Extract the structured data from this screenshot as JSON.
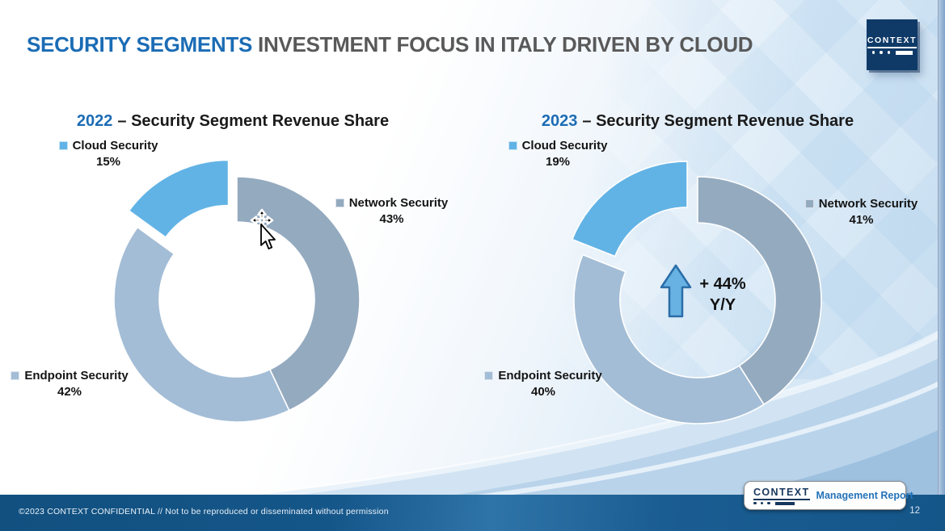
{
  "slide": {
    "title": {
      "highlight": "SECURITY SEGMENTS",
      "rest": "INVESTMENT FOCUS IN ITALY DRIVEN BY CLOUD"
    },
    "footer_text": "©2023 CONTEXT CONFIDENTIAL // Not to be reproduced or disseminated without permission",
    "page_number": "12"
  },
  "logo": {
    "text": "CONTEXT"
  },
  "badge": {
    "logo_text": "CONTEXT",
    "label": "Management Report"
  },
  "icons": {
    "cursor": "move-arrow-cursor",
    "annotation_arrow": "up-arrow"
  },
  "colors": {
    "title_blue": "#1b6cb5",
    "title_gray": "#595959",
    "cloud": "#62b3e5",
    "network": "#94aabf",
    "endpoint": "#a4bdd6",
    "footer_bar": "#155689",
    "arrow_fill": "#67b2e2",
    "arrow_stroke": "#2a6da8"
  },
  "chart_data": [
    {
      "type": "pie",
      "variant": "donut",
      "title_year": "2022",
      "title_rest": "– Security Segment Revenue Share",
      "start_angle_deg": 0,
      "clockwise": true,
      "segments": [
        {
          "label": "Network Security",
          "value": 43,
          "pct_label": "43%",
          "color": "#94aabf",
          "exploded": false
        },
        {
          "label": "Endpoint Security",
          "value": 42,
          "pct_label": "42%",
          "color": "#a4bdd6",
          "exploded": false
        },
        {
          "label": "Cloud Security",
          "value": 15,
          "pct_label": "15%",
          "color": "#62b3e5",
          "exploded": true
        }
      ]
    },
    {
      "type": "pie",
      "variant": "donut",
      "title_year": "2023",
      "title_rest": "– Security Segment Revenue Share",
      "start_angle_deg": 0,
      "clockwise": true,
      "annotation": {
        "line1": "+ 44%",
        "line2": "Y/Y",
        "icon": "up-arrow-icon"
      },
      "segments": [
        {
          "label": "Network Security",
          "value": 41,
          "pct_label": "41%",
          "color": "#94aabf",
          "exploded": false
        },
        {
          "label": "Endpoint Security",
          "value": 40,
          "pct_label": "40%",
          "color": "#a4bdd6",
          "exploded": false
        },
        {
          "label": "Cloud Security",
          "value": 19,
          "pct_label": "19%",
          "color": "#62b3e5",
          "exploded": true
        }
      ]
    }
  ]
}
